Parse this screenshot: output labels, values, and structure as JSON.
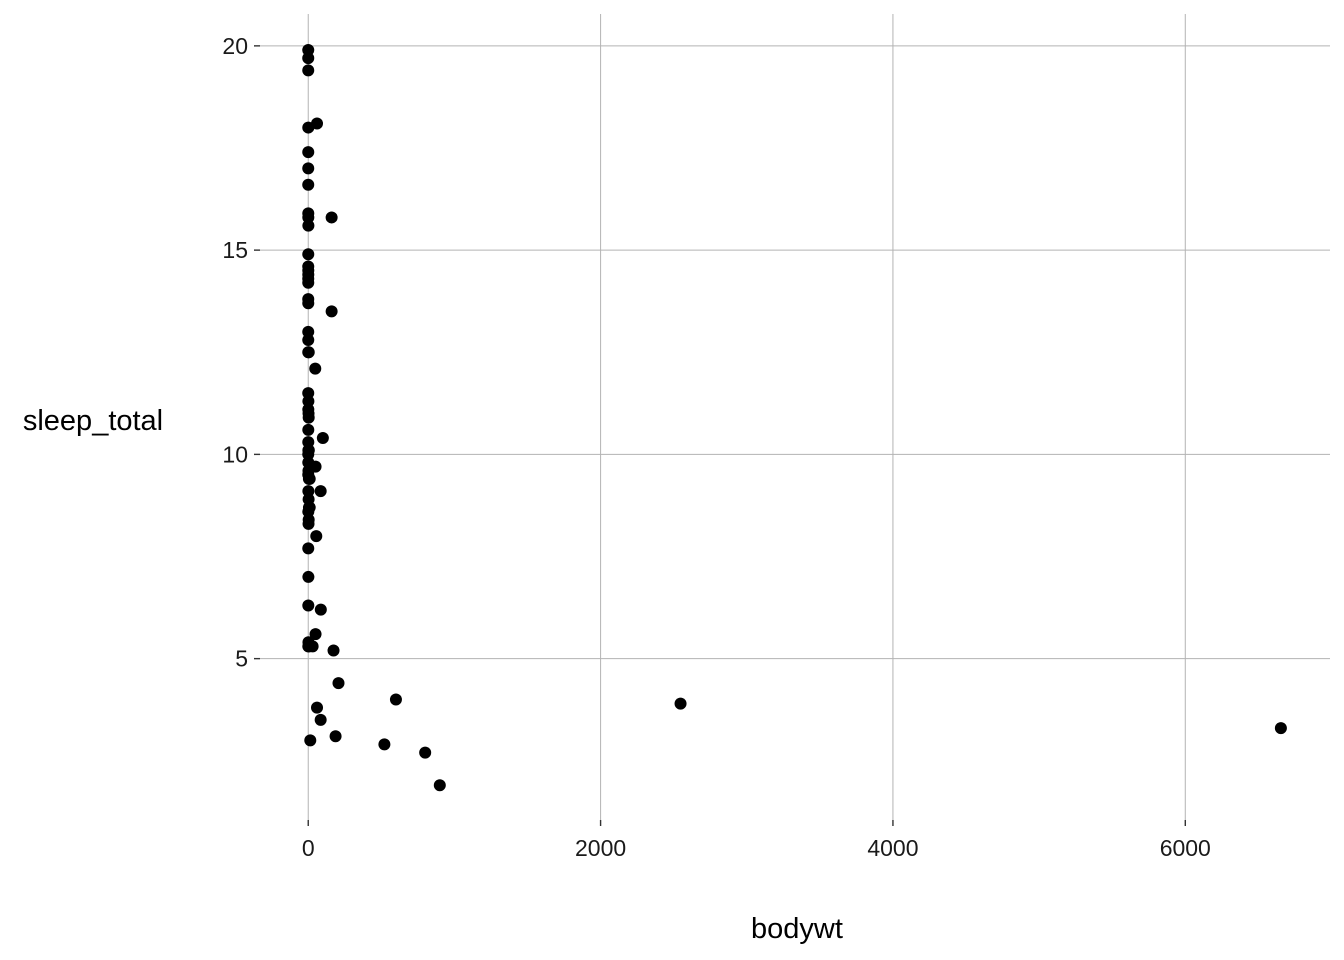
{
  "chart_data": {
    "type": "scatter",
    "title": "",
    "xlabel": "bodywt",
    "ylabel": "sleep_total",
    "xlim": [
      -330,
      6990
    ],
    "ylim": [
      1.05,
      20.78
    ],
    "x_ticks": [
      0,
      2000,
      4000,
      6000
    ],
    "y_ticks": [
      5,
      10,
      15,
      20
    ],
    "grid": true,
    "legend": "none",
    "point_color": "#000000",
    "series": [
      {
        "points": [
          [
            0.005,
            19.9
          ],
          [
            0.01,
            19.7
          ],
          [
            0.02,
            19.4
          ],
          [
            60,
            18.1
          ],
          [
            0.3,
            18.0
          ],
          [
            0.1,
            17.4
          ],
          [
            0.05,
            17.0
          ],
          [
            0.02,
            16.6
          ],
          [
            0.3,
            15.9
          ],
          [
            0.5,
            15.8
          ],
          [
            160,
            15.8
          ],
          [
            1.0,
            15.6
          ],
          [
            0.2,
            14.9
          ],
          [
            0.05,
            14.6
          ],
          [
            0.3,
            14.5
          ],
          [
            0.4,
            14.4
          ],
          [
            0.03,
            14.3
          ],
          [
            0.1,
            14.2
          ],
          [
            0.02,
            13.8
          ],
          [
            0.2,
            13.7
          ],
          [
            160,
            13.5
          ],
          [
            0.05,
            13.0
          ],
          [
            0.1,
            12.8
          ],
          [
            0.1,
            12.5
          ],
          [
            3.5,
            12.5
          ],
          [
            48,
            12.1
          ],
          [
            0.01,
            11.5
          ],
          [
            1.0,
            11.3
          ],
          [
            0.5,
            11.1
          ],
          [
            2.0,
            11.0
          ],
          [
            3.0,
            10.9
          ],
          [
            0.4,
            10.6
          ],
          [
            100,
            10.4
          ],
          [
            0.3,
            10.3
          ],
          [
            0.9,
            10.1
          ],
          [
            4.0,
            10.1
          ],
          [
            0.1,
            10.0
          ],
          [
            0.4,
            9.8
          ],
          [
            50,
            9.7
          ],
          [
            1.5,
            9.6
          ],
          [
            0.2,
            9.5
          ],
          [
            4.5,
            9.4
          ],
          [
            10,
            9.4
          ],
          [
            85,
            9.1
          ],
          [
            1.0,
            9.1
          ],
          [
            2.5,
            8.9
          ],
          [
            5.0,
            8.7
          ],
          [
            10,
            8.7
          ],
          [
            0.5,
            8.6
          ],
          [
            3.0,
            8.4
          ],
          [
            2.0,
            8.3
          ],
          [
            55,
            8.0
          ],
          [
            0.2,
            7.7
          ],
          [
            1.0,
            7.0
          ],
          [
            0.5,
            6.3
          ],
          [
            86,
            6.2
          ],
          [
            50,
            5.6
          ],
          [
            1.5,
            5.4
          ],
          [
            0.5,
            5.3
          ],
          [
            5.0,
            5.3
          ],
          [
            30,
            5.3
          ],
          [
            173,
            5.2
          ],
          [
            207,
            4.4
          ],
          [
            600,
            4.0
          ],
          [
            2547,
            3.9
          ],
          [
            60,
            3.8
          ],
          [
            85,
            3.5
          ],
          [
            6654,
            3.3
          ],
          [
            187,
            3.1
          ],
          [
            14,
            3.0
          ],
          [
            521,
            2.9
          ],
          [
            800,
            2.7
          ],
          [
            900,
            1.9
          ]
        ]
      }
    ]
  }
}
